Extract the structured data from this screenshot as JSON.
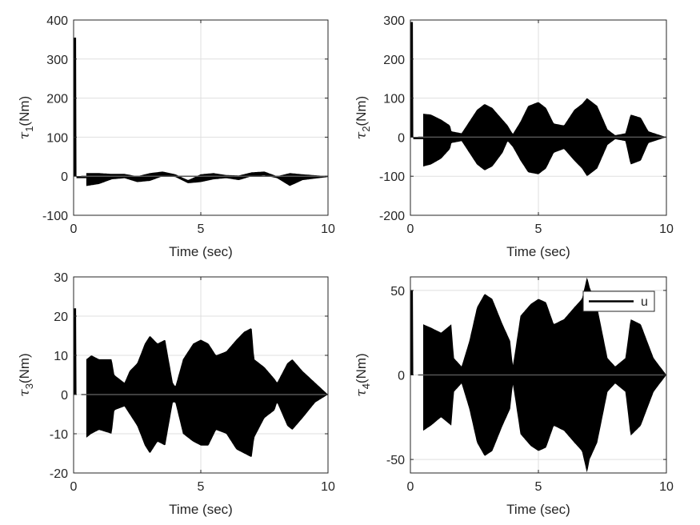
{
  "figure": {
    "background": "#ffffff",
    "signal_color": "#000000",
    "tail_color": "#555555"
  },
  "chart_data": [
    {
      "type": "line",
      "panel": "top-left",
      "xlabel": "Time (sec)",
      "ylabel_symbol": "τ",
      "ylabel_sub": "1",
      "ylabel_unit": "(Nm)",
      "xlim": [
        0,
        10
      ],
      "ylim": [
        -100,
        400
      ],
      "xticks": [
        0,
        5,
        10
      ],
      "yticks": [
        -100,
        0,
        100,
        200,
        300,
        400
      ],
      "grid": true,
      "series": [
        {
          "name": "u",
          "spike_peak": 355,
          "spike_min": -5,
          "envelope_t": [
            0.5,
            1.0,
            1.5,
            2.0,
            2.5,
            3.0,
            3.5,
            4.0,
            4.5,
            5.0,
            5.5,
            6.0,
            6.5,
            7.0,
            7.5,
            8.0,
            8.5,
            9.0,
            10.0
          ],
          "envelope_upper": [
            8,
            8,
            6,
            6,
            0,
            8,
            12,
            5,
            -10,
            5,
            8,
            3,
            2,
            10,
            12,
            0,
            8,
            5,
            0
          ],
          "envelope_lower": [
            -25,
            -20,
            -8,
            -5,
            -15,
            -12,
            0,
            -2,
            -18,
            -15,
            -8,
            -5,
            -10,
            0,
            2,
            -5,
            -25,
            -10,
            -2
          ]
        }
      ]
    },
    {
      "type": "line",
      "panel": "top-right",
      "xlabel": "Time (sec)",
      "ylabel_symbol": "τ",
      "ylabel_sub": "2",
      "ylabel_unit": "(Nm)",
      "xlim": [
        0,
        10
      ],
      "ylim": [
        -200,
        300
      ],
      "xticks": [
        0,
        5,
        10
      ],
      "yticks": [
        -200,
        -100,
        0,
        100,
        200,
        300
      ],
      "grid": true,
      "series": [
        {
          "name": "u",
          "spike_peak": 295,
          "spike_min": -5,
          "envelope_t": [
            0.5,
            0.8,
            1.2,
            1.55,
            1.6,
            2.0,
            2.2,
            2.6,
            2.9,
            3.2,
            3.6,
            3.8,
            4.0,
            4.3,
            4.6,
            5.0,
            5.3,
            5.6,
            6.0,
            6.4,
            6.7,
            6.9,
            7.0,
            7.3,
            7.7,
            8.0,
            8.4,
            8.6,
            9.0,
            9.3,
            10.0
          ],
          "envelope_upper": [
            60,
            58,
            45,
            30,
            15,
            10,
            30,
            70,
            85,
            75,
            45,
            30,
            8,
            40,
            80,
            90,
            75,
            35,
            30,
            70,
            85,
            100,
            95,
            80,
            20,
            5,
            10,
            58,
            50,
            15,
            0
          ],
          "envelope_lower": [
            -75,
            -70,
            -55,
            -30,
            -15,
            -10,
            -30,
            -70,
            -85,
            -75,
            -40,
            -10,
            -25,
            -60,
            -90,
            -95,
            -80,
            -40,
            -30,
            -60,
            -80,
            -100,
            -95,
            -80,
            -20,
            -5,
            -10,
            -70,
            -60,
            -15,
            0
          ]
        }
      ]
    },
    {
      "type": "line",
      "panel": "bottom-left",
      "xlabel": "Time (sec)",
      "ylabel_symbol": "τ",
      "ylabel_sub": "3",
      "ylabel_unit": "(Nm)",
      "xlim": [
        0,
        10
      ],
      "ylim": [
        -20,
        30
      ],
      "xticks": [
        0,
        5,
        10
      ],
      "yticks": [
        -20,
        -10,
        0,
        10,
        20,
        30
      ],
      "grid": true,
      "series": [
        {
          "name": "u",
          "spike_peak": 22,
          "spike_min": 0,
          "envelope_t": [
            0.5,
            0.7,
            1.0,
            1.5,
            1.6,
            2.0,
            2.2,
            2.5,
            2.8,
            3.0,
            3.3,
            3.6,
            3.9,
            4.0,
            4.3,
            4.7,
            5.0,
            5.3,
            5.6,
            6.0,
            6.4,
            6.7,
            7.0,
            7.1,
            7.5,
            7.9,
            8.0,
            8.4,
            8.6,
            9.0,
            9.5,
            10.0
          ],
          "envelope_upper": [
            9,
            10,
            9,
            9,
            5,
            3,
            6,
            8,
            13,
            15,
            13,
            14,
            3,
            2,
            9,
            13,
            14,
            13,
            10,
            11,
            14,
            16,
            17,
            9,
            7,
            4,
            3,
            8,
            9,
            6,
            3,
            0
          ],
          "envelope_lower": [
            -11,
            -10,
            -9,
            -10,
            -4,
            -3,
            -5,
            -8,
            -13,
            -15,
            -12,
            -13,
            -2,
            -2,
            -10,
            -12,
            -13,
            -13,
            -9,
            -10,
            -14,
            -15,
            -16,
            -11,
            -6,
            -4,
            -2,
            -8,
            -9,
            -6,
            -2,
            0
          ]
        }
      ]
    },
    {
      "type": "line",
      "panel": "bottom-right",
      "xlabel": "Time (sec)",
      "ylabel_symbol": "τ",
      "ylabel_sub": "4",
      "ylabel_unit": "(Nm)",
      "xlim": [
        0,
        10
      ],
      "ylim": [
        -58,
        58
      ],
      "xticks": [
        0,
        5,
        10
      ],
      "yticks": [
        -50,
        0,
        50
      ],
      "grid": true,
      "legend": {
        "entries": [
          "u"
        ],
        "location": "top-right"
      },
      "series": [
        {
          "name": "u",
          "spike_peak": 50,
          "spike_min": 0,
          "envelope_t": [
            0.5,
            0.8,
            1.2,
            1.6,
            1.7,
            2.0,
            2.3,
            2.6,
            2.9,
            3.2,
            3.6,
            3.9,
            4.0,
            4.3,
            4.7,
            5.0,
            5.3,
            5.6,
            6.0,
            6.4,
            6.7,
            6.9,
            7.0,
            7.3,
            7.7,
            8.0,
            8.4,
            8.6,
            9.0,
            9.5,
            10.0
          ],
          "envelope_upper": [
            30,
            28,
            25,
            30,
            10,
            5,
            20,
            40,
            48,
            45,
            30,
            20,
            5,
            35,
            42,
            45,
            43,
            30,
            33,
            40,
            45,
            58,
            52,
            40,
            10,
            5,
            10,
            33,
            30,
            10,
            0
          ],
          "envelope_lower": [
            -33,
            -30,
            -25,
            -30,
            -10,
            -5,
            -20,
            -40,
            -48,
            -45,
            -30,
            -20,
            -5,
            -35,
            -42,
            -45,
            -43,
            -30,
            -33,
            -40,
            -45,
            -58,
            -50,
            -40,
            -10,
            -5,
            -10,
            -36,
            -30,
            -10,
            0
          ]
        }
      ]
    }
  ]
}
